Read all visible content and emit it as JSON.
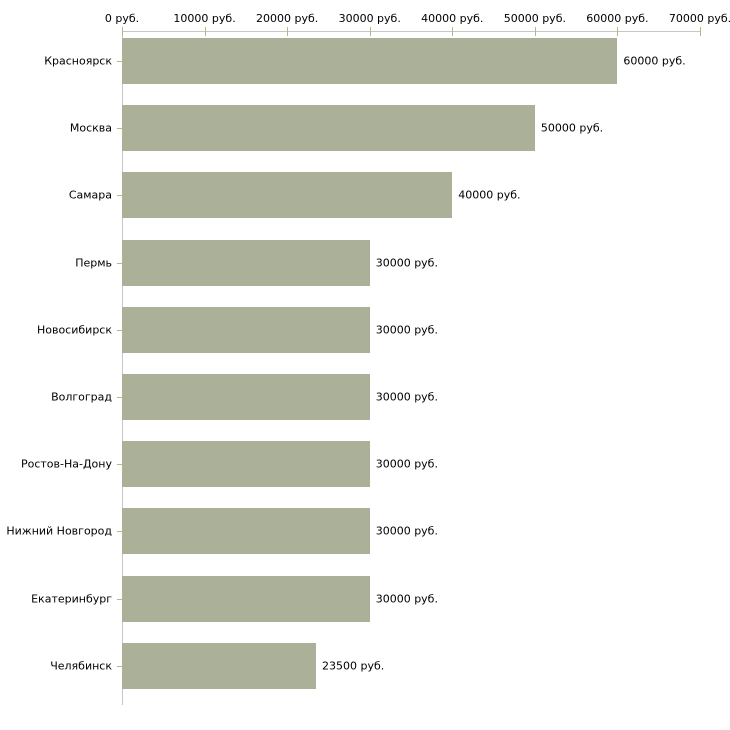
{
  "chart_data": {
    "type": "bar",
    "orientation": "horizontal",
    "title": "",
    "unit_suffix": " руб.",
    "categories": [
      "Красноярск",
      "Москва",
      "Самара",
      "Пермь",
      "Новосибирск",
      "Волгоград",
      "Ростов-На-Дону",
      "Нижний Новгород",
      "Екатеринбург",
      "Челябинск"
    ],
    "values": [
      60000,
      50000,
      40000,
      30000,
      30000,
      30000,
      30000,
      30000,
      30000,
      23500
    ],
    "value_labels": [
      "60000 руб.",
      "50000 руб.",
      "40000 руб.",
      "30000 руб.",
      "30000 руб.",
      "30000 руб.",
      "30000 руб.",
      "30000 руб.",
      "30000 руб.",
      "23500 руб."
    ],
    "x_axis": {
      "position": "top",
      "xlim": [
        0,
        70000
      ],
      "ticks": [
        0,
        10000,
        20000,
        30000,
        40000,
        50000,
        60000,
        70000
      ],
      "tick_labels": [
        "0 руб.",
        "10000 руб.",
        "20000 руб.",
        "30000 руб.",
        "40000 руб.",
        "50000 руб.",
        "60000 руб.",
        "70000 руб."
      ]
    },
    "legend": false,
    "grid": false,
    "colors": {
      "bar": "#aab198",
      "axis_line": "#c6c6c6",
      "tick_mark": "#b4ba85",
      "text": "#000000",
      "background": "#ffffff"
    }
  }
}
